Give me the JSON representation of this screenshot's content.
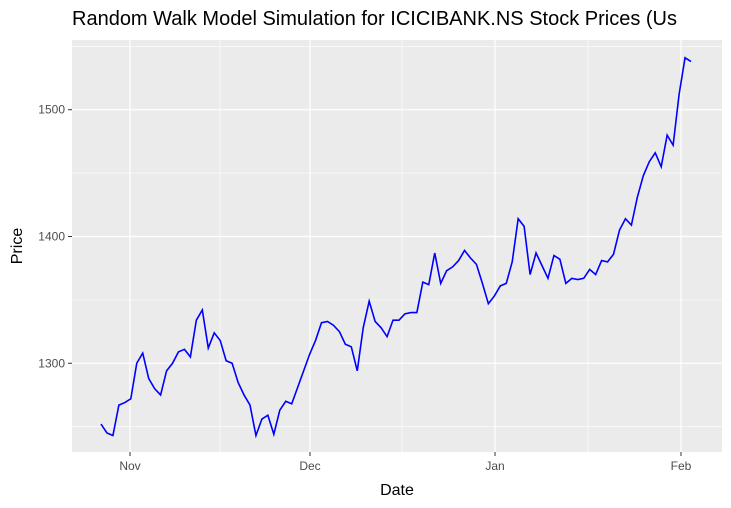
{
  "chart_data": {
    "type": "line",
    "title": "Random Walk Model Simulation for ICICIBANK.NS Stock Prices (Us",
    "xlabel": "Date",
    "ylabel": "Price",
    "x_ticks": [
      "Nov",
      "Dec",
      "Jan",
      "Feb"
    ],
    "y_ticks": [
      1300,
      1400,
      1500
    ],
    "ylim": [
      1230,
      1555
    ],
    "grid": true,
    "colors": {
      "line": "#0000ff",
      "panel": "#ebebeb",
      "grid": "#ffffff"
    },
    "series": [
      {
        "values": [
          1252,
          1245,
          1243,
          1267,
          1269,
          1272,
          1300,
          1308,
          1288,
          1280,
          1275,
          1294,
          1300,
          1309,
          1311,
          1305,
          1334,
          1342,
          1312,
          1324,
          1318,
          1302,
          1300,
          1285,
          1275,
          1267,
          1243,
          1256,
          1259,
          1244,
          1263,
          1270,
          1268,
          1281,
          1294,
          1307,
          1318,
          1332,
          1333,
          1330,
          1325,
          1315,
          1313,
          1294,
          1328,
          1349,
          1333,
          1328,
          1321,
          1334,
          1334,
          1339,
          1340,
          1340,
          1364,
          1362,
          1387,
          1363,
          1373,
          1376,
          1381,
          1389,
          1383,
          1378,
          1363,
          1347,
          1353,
          1361,
          1363,
          1380,
          1414,
          1408,
          1370,
          1387,
          1377,
          1367,
          1385,
          1382,
          1363,
          1367,
          1366,
          1367,
          1374,
          1370,
          1381,
          1380,
          1386,
          1405,
          1414,
          1409,
          1431,
          1448,
          1459,
          1466,
          1455,
          1480,
          1472,
          1512,
          1541,
          1538
        ]
      }
    ]
  }
}
